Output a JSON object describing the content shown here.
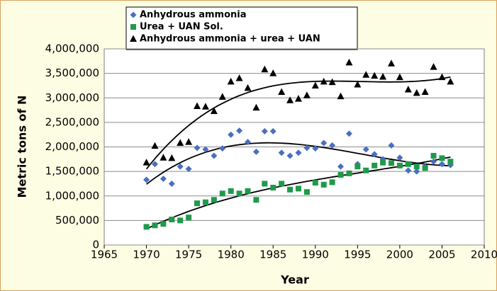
{
  "chart_data": {
    "type": "scatter",
    "x_label": "Year",
    "y_label": "Metric tons of N",
    "x": [
      1970,
      1971,
      1972,
      1973,
      1974,
      1975,
      1976,
      1977,
      1978,
      1979,
      1980,
      1981,
      1982,
      1983,
      1984,
      1985,
      1986,
      1987,
      1988,
      1989,
      1990,
      1991,
      1992,
      1993,
      1994,
      1995,
      1996,
      1997,
      1998,
      1999,
      2000,
      2001,
      2002,
      2003,
      2004,
      2005,
      2006
    ],
    "series": [
      {
        "name": "Anhydrous ammonia",
        "color": "#4a6fc0",
        "marker": "diamond",
        "values": [
          1330000,
          1650000,
          1350000,
          1250000,
          1600000,
          1550000,
          1980000,
          1950000,
          1820000,
          1970000,
          2250000,
          2330000,
          2100000,
          1900000,
          2320000,
          2320000,
          1880000,
          1820000,
          1880000,
          1980000,
          1970000,
          2080000,
          2030000,
          1600000,
          2270000,
          1650000,
          1950000,
          1850000,
          1750000,
          2030000,
          1780000,
          1520000,
          1500000,
          1600000,
          1700000,
          1650000,
          1630000
        ]
      },
      {
        "name": "Urea + UAN Sol.",
        "color": "#1f9a4a",
        "marker": "square",
        "values": [
          370000,
          400000,
          430000,
          520000,
          500000,
          560000,
          850000,
          870000,
          920000,
          1050000,
          1100000,
          1050000,
          1100000,
          920000,
          1250000,
          1170000,
          1250000,
          1130000,
          1150000,
          1080000,
          1270000,
          1230000,
          1280000,
          1430000,
          1460000,
          1600000,
          1520000,
          1620000,
          1680000,
          1670000,
          1620000,
          1650000,
          1600000,
          1570000,
          1820000,
          1770000,
          1700000
        ]
      },
      {
        "name": "Anhydrous ammonia + urea + UAN",
        "color": "#000000",
        "marker": "triangle",
        "values": [
          1680000,
          2020000,
          1780000,
          1770000,
          2080000,
          2100000,
          2830000,
          2820000,
          2730000,
          3020000,
          3330000,
          3400000,
          3200000,
          2800000,
          3580000,
          3500000,
          3120000,
          2950000,
          2980000,
          3050000,
          3250000,
          3330000,
          3320000,
          3030000,
          3720000,
          3270000,
          3470000,
          3450000,
          3430000,
          3700000,
          3420000,
          3170000,
          3100000,
          3120000,
          3630000,
          3420000,
          3330000
        ]
      }
    ],
    "trendline": true,
    "xlim": [
      1965,
      2010
    ],
    "xticks": [
      1965,
      1970,
      1975,
      1980,
      1985,
      1990,
      1995,
      2000,
      2005,
      2010
    ],
    "ylim": [
      0,
      4000000
    ],
    "yticks": [
      0,
      {
        "value": 500000,
        "label": "500,000"
      },
      {
        "value": 1000000,
        "label": "1,000,000"
      },
      {
        "value": 1500000,
        "label": "1,500,000"
      },
      {
        "value": 2000000,
        "label": "2,000,000"
      },
      {
        "value": 2500000,
        "label": "2,500,000"
      },
      {
        "value": 3000000,
        "label": "3,000,000"
      },
      {
        "value": 3500000,
        "label": "3,500,000"
      },
      {
        "value": 4000000,
        "label": "4,000,000"
      }
    ],
    "grid": true
  }
}
